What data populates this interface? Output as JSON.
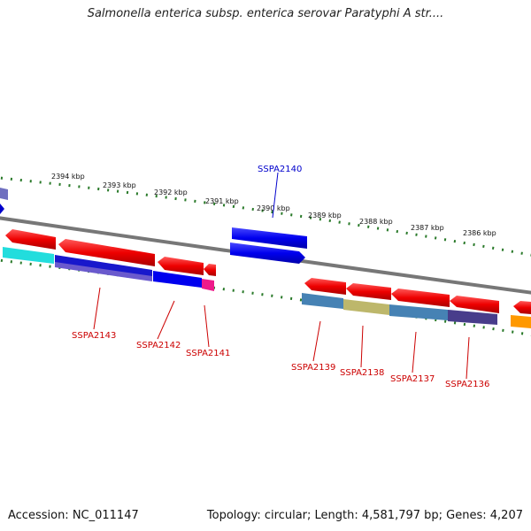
{
  "header": {
    "title": "Salmonella enterica subsp. enterica serovar Paratyphi A str...."
  },
  "ruler": {
    "ticks": [
      "2394 kbp",
      "2393 kbp",
      "2392 kbp",
      "2391 kbp",
      "2390 kbp",
      "2389 kbp",
      "2388 kbp",
      "2387 kbp",
      "2386 kbp"
    ]
  },
  "genes": [
    {
      "name": "SSPA2143",
      "color": "#cc0000"
    },
    {
      "name": "SSPA2142",
      "color": "#cc0000"
    },
    {
      "name": "SSPA2141",
      "color": "#cc0000"
    },
    {
      "name": "SSPA2140",
      "color": "#0000cc"
    },
    {
      "name": "SSPA2139",
      "color": "#cc0000"
    },
    {
      "name": "SSPA2138",
      "color": "#cc0000"
    },
    {
      "name": "SSPA2137",
      "color": "#cc0000"
    },
    {
      "name": "SSPA2136",
      "color": "#cc0000"
    }
  ],
  "footer": {
    "accession": "Accession: NC_011147",
    "summary": "Topology: circular; Length: 4,581,797 bp; Genes: 4,207"
  }
}
